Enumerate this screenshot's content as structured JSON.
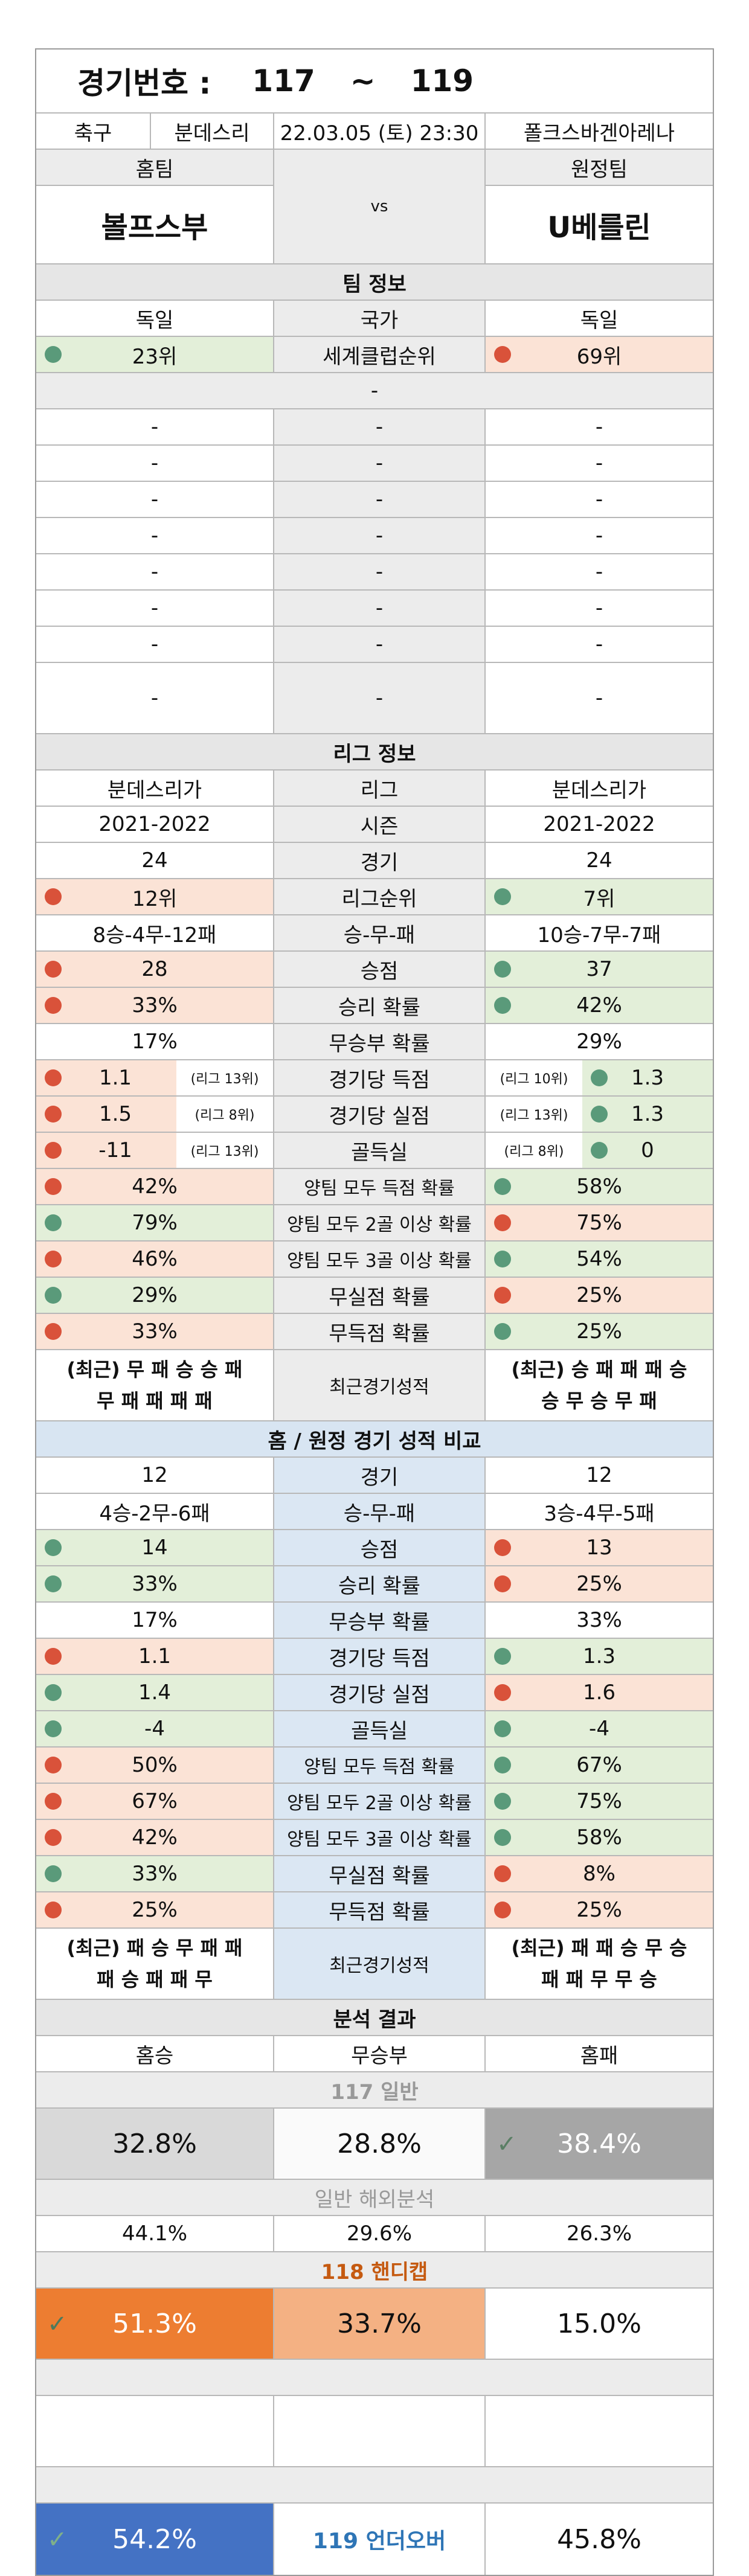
{
  "header": {
    "label": "경기번호 :",
    "from": "117",
    "tilde": "~",
    "to": "119"
  },
  "match": {
    "sport": "축구",
    "league": "분데스리",
    "datetime": "22.03.05 (토) 23:30",
    "venue": "폴크스바겐아레나"
  },
  "teams": {
    "home_label": "홈팀",
    "away_label": "원정팀",
    "home": "볼프스부",
    "vs": "vs",
    "away": "U베를린"
  },
  "team_info": {
    "title": "팀 정보",
    "country": {
      "home": "독일",
      "label": "국가",
      "away": "독일"
    },
    "rank": {
      "home": "23위",
      "label": "세계클럽순위",
      "away": "69위",
      "home_color": "green",
      "away_color": "red"
    },
    "dash_bar": "-",
    "blank_rows": [
      [
        "-",
        "-",
        "-"
      ],
      [
        "-",
        "-",
        "-"
      ],
      [
        "-",
        "-",
        "-"
      ],
      [
        "-",
        "-",
        "-"
      ],
      [
        "-",
        "-",
        "-"
      ],
      [
        "-",
        "-",
        "-"
      ],
      [
        "-",
        "-",
        "-"
      ],
      [
        "-",
        "-",
        "-"
      ]
    ]
  },
  "league_info": {
    "title": "리그 정보",
    "rows": [
      {
        "home": "분데스리가",
        "label": "리그",
        "away": "분데스리가"
      },
      {
        "home": "2021-2022",
        "label": "시즌",
        "away": "2021-2022"
      },
      {
        "home": "24",
        "label": "경기",
        "away": "24"
      },
      {
        "home": "12위",
        "label": "리그순위",
        "away": "7위",
        "hc": "red",
        "ac": "green"
      },
      {
        "home": "8승-4무-12패",
        "label": "승-무-패",
        "away": "10승-7무-7패"
      },
      {
        "home": "28",
        "label": "승점",
        "away": "37",
        "hc": "red",
        "ac": "green"
      },
      {
        "home": "33%",
        "label": "승리 확률",
        "away": "42%",
        "hc": "red",
        "ac": "green"
      },
      {
        "home": "17%",
        "label": "무승부 확률",
        "away": "29%"
      },
      {
        "home": "1.1",
        "home_sub": "(리그 13위)",
        "label": "경기당 득점",
        "away": "1.3",
        "away_sub": "(리그 10위)",
        "hc": "red",
        "ac": "green"
      },
      {
        "home": "1.5",
        "home_sub": "(리그 8위)",
        "label": "경기당 실점",
        "away": "1.3",
        "away_sub": "(리그 13위)",
        "hc": "red",
        "ac": "green"
      },
      {
        "home": "-11",
        "home_sub": "(리그 13위)",
        "label": "골득실",
        "away": "0",
        "away_sub": "(리그 8위)",
        "hc": "red",
        "ac": "green"
      },
      {
        "home": "42%",
        "label": "양팀 모두 득점 확률",
        "away": "58%",
        "hc": "red",
        "ac": "green"
      },
      {
        "home": "79%",
        "label": "양팀 모두 2골 이상 확률",
        "away": "75%",
        "hc": "green",
        "ac": "red"
      },
      {
        "home": "46%",
        "label": "양팀 모두 3골 이상 확률",
        "away": "54%",
        "hc": "red",
        "ac": "green"
      },
      {
        "home": "29%",
        "label": "무실점 확률",
        "away": "25%",
        "hc": "green",
        "ac": "red"
      },
      {
        "home": "33%",
        "label": "무득점 확률",
        "away": "25%",
        "hc": "red",
        "ac": "green"
      }
    ],
    "recent": {
      "home1": "(최근) 무 패 승 승 패",
      "home2": "무 패 패 패 패",
      "label": "최근경기성적",
      "away1": "(최근) 승 패 패 패 승",
      "away2": "승 무 승 무 패"
    }
  },
  "homeaway": {
    "title": "홈 / 원정 경기 성적 비교",
    "rows": [
      {
        "home": "12",
        "label": "경기",
        "away": "12"
      },
      {
        "home": "4승-2무-6패",
        "label": "승-무-패",
        "away": "3승-4무-5패"
      },
      {
        "home": "14",
        "label": "승점",
        "away": "13",
        "hc": "green",
        "ac": "red"
      },
      {
        "home": "33%",
        "label": "승리 확률",
        "away": "25%",
        "hc": "green",
        "ac": "red"
      },
      {
        "home": "17%",
        "label": "무승부 확률",
        "away": "33%"
      },
      {
        "home": "1.1",
        "label": "경기당 득점",
        "away": "1.3",
        "hc": "red",
        "ac": "green"
      },
      {
        "home": "1.4",
        "label": "경기당 실점",
        "away": "1.6",
        "hc": "green",
        "ac": "red"
      },
      {
        "home": "-4",
        "label": "골득실",
        "away": "-4",
        "hc": "green",
        "ac": "green"
      },
      {
        "home": "50%",
        "label": "양팀 모두 득점 확률",
        "away": "67%",
        "hc": "red",
        "ac": "green"
      },
      {
        "home": "67%",
        "label": "양팀 모두 2골 이상 확률",
        "away": "75%",
        "hc": "red",
        "ac": "green"
      },
      {
        "home": "42%",
        "label": "양팀 모두 3골 이상 확률",
        "away": "58%",
        "hc": "red",
        "ac": "green"
      },
      {
        "home": "33%",
        "label": "무실점 확률",
        "away": "8%",
        "hc": "green",
        "ac": "red"
      },
      {
        "home": "25%",
        "label": "무득점 확률",
        "away": "25%",
        "hc": "red",
        "ac": "red"
      }
    ],
    "recent": {
      "home1": "(최근) 패 승 무 패 패",
      "home2": "패 승 패 패 무",
      "label": "최근경기성적",
      "away1": "(최근) 패 패 승 무 승",
      "away2": "패 패 무 무 승"
    }
  },
  "analysis": {
    "title": "분석 결과",
    "labels": {
      "home": "홈승",
      "draw": "무승부",
      "away": "홈패"
    },
    "general": {
      "title": "117 일반",
      "home": "32.8%",
      "draw": "28.8%",
      "away": "38.4%"
    },
    "overseas": {
      "title": "일반 해외분석",
      "home": "44.1%",
      "draw": "29.6%",
      "away": "26.3%"
    },
    "handicap": {
      "title": "118 핸디캡",
      "home": "51.3%",
      "draw": "33.7%",
      "away": "15.0%"
    },
    "underover": {
      "left": "54.2%",
      "title": "119 언더오버",
      "right": "45.8%"
    },
    "check": "✓",
    "colors": {
      "orange": "#ed7d31",
      "light_orange": "#f4b183",
      "blue": "#4472c4",
      "gray": "#a6a6a6"
    }
  }
}
